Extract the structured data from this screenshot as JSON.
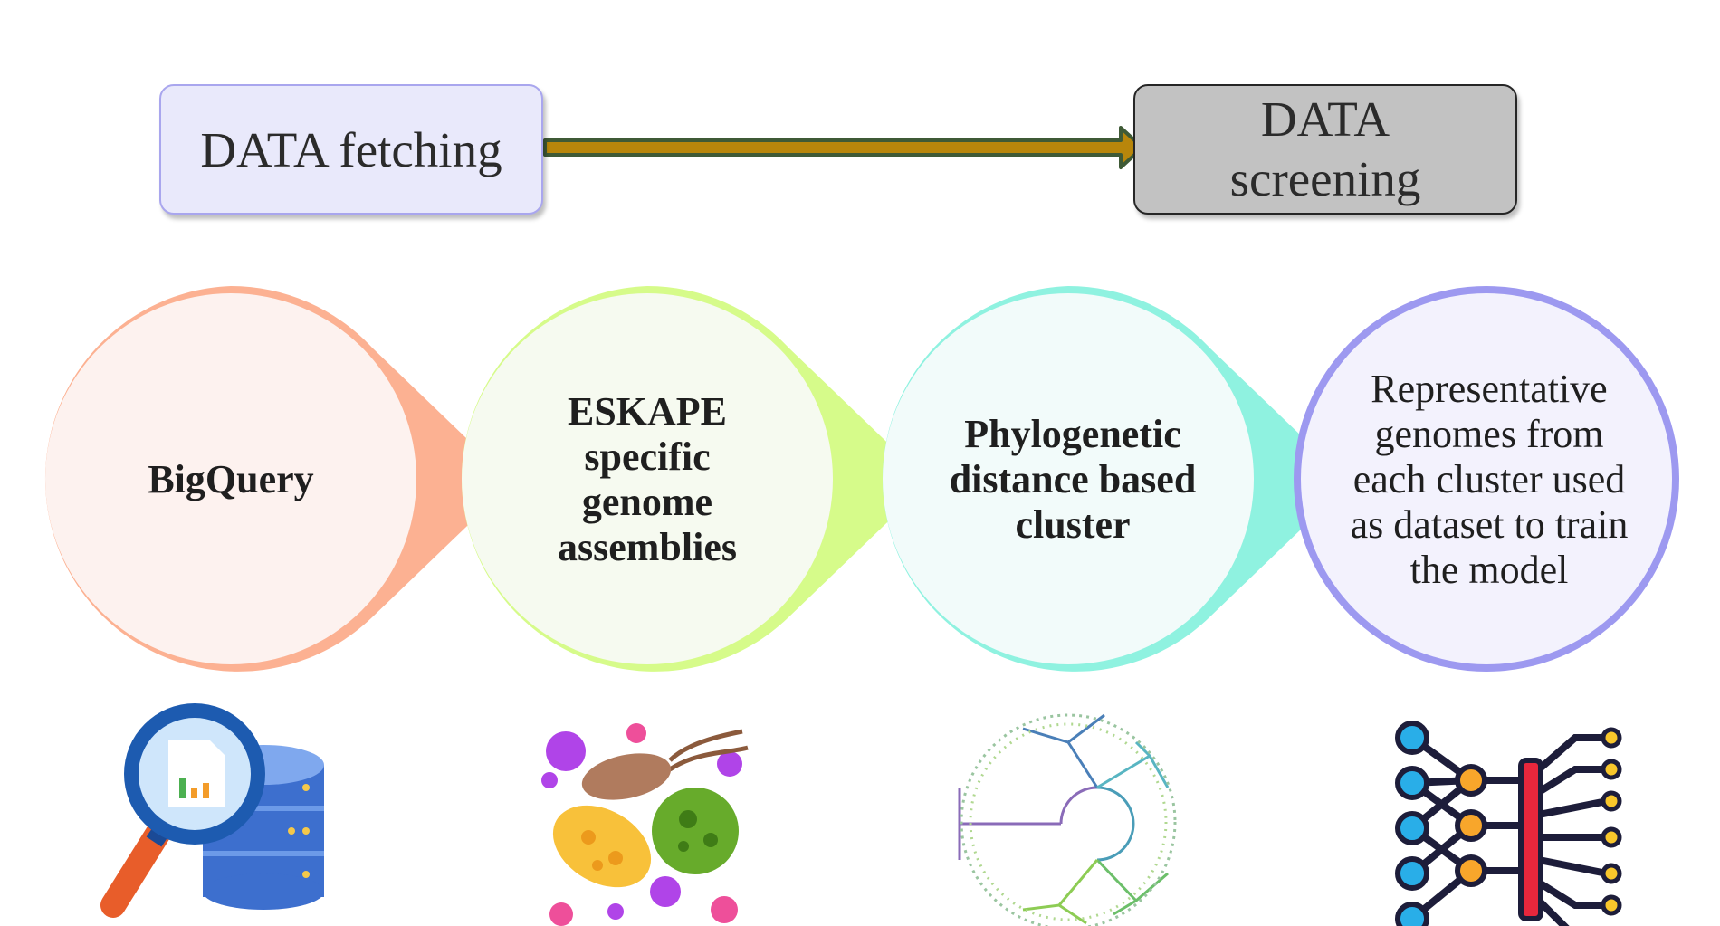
{
  "header": {
    "fetching_label": "DATA fetching",
    "screening_label": "DATA screening"
  },
  "steps": [
    {
      "label": "BigQuery",
      "color": "#fcb192",
      "icon": "database-search-icon"
    },
    {
      "label": "ESKAPE specific genome assemblies",
      "color": "#d6fb8a",
      "icon": "bacteria-icon"
    },
    {
      "label": "Phylogenetic distance based cluster",
      "color": "#8ff2e0",
      "icon": "phylogenetic-tree-icon"
    },
    {
      "label": "Representative genomes from each cluster used as dataset to train the model",
      "color": "#9d99f0",
      "icon": "neural-network-icon"
    }
  ],
  "colors": {
    "arrow_fill": "#b8860b",
    "arrow_stroke": "#3f5a36",
    "fetching_box": "#e9e9fb",
    "screening_box": "#c2c2c2"
  }
}
